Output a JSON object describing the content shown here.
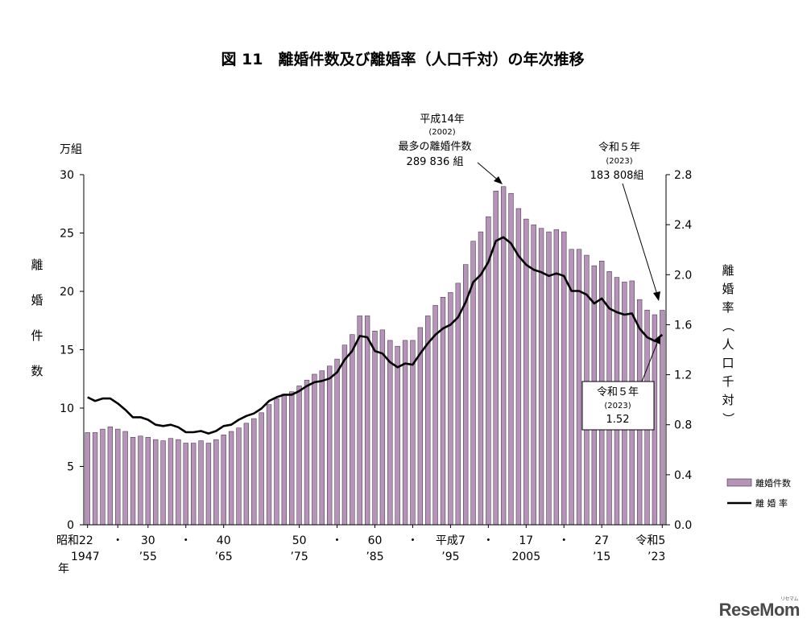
{
  "chart_data": {
    "type": "bar+line",
    "title": "図 11　離婚件数及び離婚率（人口千対）の年次推移",
    "left_axis": {
      "unit_label": "万組",
      "title": "離婚件数",
      "min": 0,
      "max": 30,
      "ticks": [
        "0",
        "5",
        "10",
        "15",
        "20",
        "25",
        "30"
      ]
    },
    "right_axis": {
      "title": "離婚率（人口千対）",
      "min": 0.0,
      "max": 2.8,
      "ticks": [
        "0.0",
        "0.4",
        "0.8",
        "1.2",
        "1.6",
        "2.0",
        "2.4",
        "2.8"
      ]
    },
    "years": [
      1947,
      1948,
      1949,
      1950,
      1951,
      1952,
      1953,
      1954,
      1955,
      1956,
      1957,
      1958,
      1959,
      1960,
      1961,
      1962,
      1963,
      1964,
      1965,
      1966,
      1967,
      1968,
      1969,
      1970,
      1971,
      1972,
      1973,
      1974,
      1975,
      1976,
      1977,
      1978,
      1979,
      1980,
      1981,
      1982,
      1983,
      1984,
      1985,
      1986,
      1987,
      1988,
      1989,
      1990,
      1991,
      1992,
      1993,
      1994,
      1995,
      1996,
      1997,
      1998,
      1999,
      2000,
      2001,
      2002,
      2003,
      2004,
      2005,
      2006,
      2007,
      2008,
      2009,
      2010,
      2011,
      2012,
      2013,
      2014,
      2015,
      2016,
      2017,
      2018,
      2019,
      2020,
      2021,
      2022,
      2023
    ],
    "series": [
      {
        "name": "離婚件数",
        "kind": "bar",
        "axis": "left",
        "color": "#b693b8",
        "values": [
          7.9,
          7.9,
          8.2,
          8.4,
          8.2,
          8.0,
          7.5,
          7.6,
          7.5,
          7.3,
          7.2,
          7.4,
          7.3,
          7.0,
          7.0,
          7.2,
          7.0,
          7.3,
          7.7,
          8.0,
          8.3,
          8.7,
          9.1,
          9.6,
          10.3,
          10.8,
          11.2,
          11.4,
          11.9,
          12.4,
          12.9,
          13.2,
          13.6,
          14.2,
          15.4,
          16.3,
          17.9,
          17.9,
          16.6,
          16.7,
          15.8,
          15.3,
          15.8,
          15.8,
          16.9,
          17.9,
          18.8,
          19.5,
          19.9,
          20.7,
          22.3,
          24.3,
          25.1,
          26.4,
          28.6,
          28.98,
          28.4,
          27.1,
          26.2,
          25.7,
          25.4,
          25.1,
          25.3,
          25.1,
          23.6,
          23.6,
          23.1,
          22.2,
          22.6,
          21.7,
          21.2,
          20.8,
          20.9,
          19.3,
          18.4,
          18.0,
          18.38
        ]
      },
      {
        "name": "離婚率",
        "kind": "line",
        "axis": "right",
        "color": "#000000",
        "values": [
          1.02,
          0.99,
          1.01,
          1.01,
          0.97,
          0.92,
          0.86,
          0.86,
          0.84,
          0.8,
          0.79,
          0.8,
          0.78,
          0.74,
          0.74,
          0.75,
          0.73,
          0.75,
          0.79,
          0.8,
          0.84,
          0.87,
          0.89,
          0.93,
          0.99,
          1.02,
          1.04,
          1.04,
          1.07,
          1.11,
          1.14,
          1.15,
          1.17,
          1.22,
          1.32,
          1.39,
          1.51,
          1.5,
          1.39,
          1.37,
          1.3,
          1.26,
          1.29,
          1.28,
          1.37,
          1.45,
          1.52,
          1.57,
          1.6,
          1.66,
          1.78,
          1.94,
          2.0,
          2.1,
          2.27,
          2.3,
          2.25,
          2.15,
          2.08,
          2.04,
          2.02,
          1.99,
          2.01,
          1.99,
          1.87,
          1.87,
          1.84,
          1.77,
          1.81,
          1.73,
          1.7,
          1.68,
          1.69,
          1.57,
          1.5,
          1.47,
          1.52
        ]
      }
    ],
    "x_tick_labels": [
      {
        "year": 1947,
        "top": "昭和22",
        "bottom": "1947"
      },
      {
        "year": 1951,
        "top": "・",
        "bottom": ""
      },
      {
        "year": 1955,
        "top": "30",
        "bottom": "’55"
      },
      {
        "year": 1960,
        "top": "・",
        "bottom": ""
      },
      {
        "year": 1965,
        "top": "40",
        "bottom": "’65"
      },
      {
        "year": 1975,
        "top": "50",
        "bottom": "’75"
      },
      {
        "year": 1980,
        "top": "・",
        "bottom": ""
      },
      {
        "year": 1985,
        "top": "60",
        "bottom": "’85"
      },
      {
        "year": 1990,
        "top": "・",
        "bottom": ""
      },
      {
        "year": 1995,
        "top": "平成7",
        "bottom": "’95"
      },
      {
        "year": 2000,
        "top": "・",
        "bottom": ""
      },
      {
        "year": 2005,
        "top": "17",
        "bottom": "2005"
      },
      {
        "year": 2010,
        "top": "・",
        "bottom": ""
      },
      {
        "year": 2015,
        "top": "27",
        "bottom": "’15"
      },
      {
        "year": 2023,
        "top": "令和5",
        "bottom": "’23"
      }
    ],
    "x_axis_year_label": "年",
    "annotations": [
      {
        "id": "peak",
        "year": 2002,
        "lines": [
          "平成14年",
          "(2002)",
          "最多の離婚件数",
          "289 836 組"
        ]
      },
      {
        "id": "latest_count",
        "year": 2023,
        "lines": [
          "令和５年",
          "(2023)",
          "183 808組"
        ]
      },
      {
        "id": "latest_rate",
        "year": 2023,
        "lines": [
          "令和５年",
          "(2023)",
          "1.52"
        ]
      }
    ],
    "legend": {
      "placement": "right-bottom",
      "items": [
        {
          "label": "離婚件数",
          "kind": "bar"
        },
        {
          "label": "離 婚 率",
          "kind": "line"
        }
      ]
    }
  },
  "watermark": {
    "text": "ReseMom",
    "subtext": "リセマム"
  }
}
